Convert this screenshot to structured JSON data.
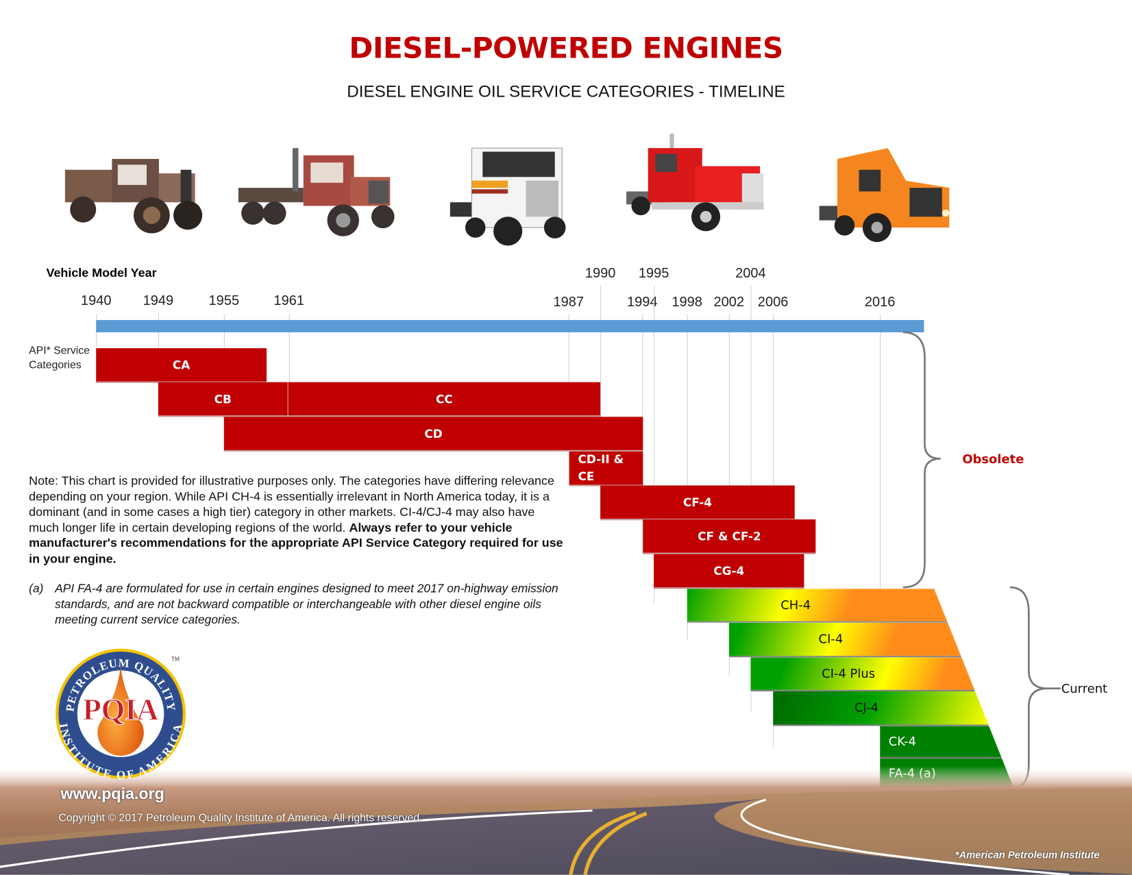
{
  "header": {
    "title": "DIESEL-POWERED ENGINES",
    "subtitle": "DIESEL ENGINE OIL SERVICE CATEGORIES - TIMELINE"
  },
  "timeline": {
    "label": "Vehicle Model Year",
    "years_lower": [
      "1940",
      "1949",
      "1955",
      "1961",
      "1987",
      "1994",
      "1998",
      "2002",
      "2006",
      "2016"
    ],
    "years_upper": [
      "1990",
      "1995",
      "2004"
    ],
    "color": "#5b9bd5"
  },
  "categories_label_line1": "API* Service",
  "categories_label_line2": "Categories",
  "obsolete": {
    "label": "Obsolete",
    "color": "#c00000",
    "items": [
      "CA",
      "CB",
      "CC",
      "CD",
      "CD-II & CE",
      "CF-4",
      "CF & CF-2",
      "CG-4"
    ]
  },
  "current": {
    "label": "Current",
    "items": [
      "CH-4",
      "CI-4",
      "CI-4 Plus",
      "CJ-4",
      "CK-4",
      "FA-4 (a)"
    ],
    "gradient_colors": [
      "#00a000",
      "#ffff00",
      "#ff8c1a"
    ],
    "dark_green": "#008000"
  },
  "note": {
    "text": "Note: This chart is provided for illustrative purposes only. The categories have differing relevance depending on your region.  While API CH-4 is essentially irrelevant in North America today, it is a dominant (and in some cases a high tier) category in other markets. CI-4/CJ-4 may also have much longer life in certain developing regions of the world. ",
    "bold": "Always refer to your vehicle  manufacturer's recommendations for the appropriate API Service Category required for use in your engine."
  },
  "footnote": {
    "tag": "(a)",
    "text": "API FA-4 are formulated for use in certain engines designed to meet 2017 on-highway emission standards, and are not backward compatible or interchangeable with other diesel engine oils meeting current service categories."
  },
  "logo": {
    "text": "PQIA",
    "ring_top": "PETROLEUM QUALITY",
    "ring_bottom": "INSTITUTE OF AMERICA",
    "tm": "TM"
  },
  "footer": {
    "website": "www.pqia.org",
    "copyright": "Copyright © 2017 Petroleum Quality Institute of America.  All rights reserved.",
    "api_note": "*American Petroleum Institute"
  }
}
